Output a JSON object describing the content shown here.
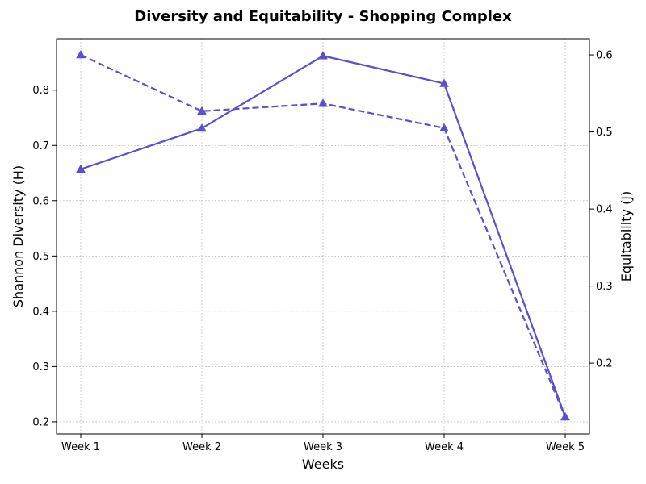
{
  "chart_data": {
    "type": "line",
    "title": "Diversity and Equitability - Shopping Complex",
    "xlabel": "Weeks",
    "ylabel": "Shannon Diversity (H)",
    "ylabel_right": "Equitability (J)",
    "categories": [
      "Week 1",
      "Week 2",
      "Week 3",
      "Week 4",
      "Week 5"
    ],
    "ylim": [
      0.178,
      0.893
    ],
    "ylim_right": [
      0.108,
      0.621
    ],
    "yticks": [
      0.2,
      0.3,
      0.4,
      0.5,
      0.6,
      0.7,
      0.8
    ],
    "yticks_right": [
      0.2,
      0.3,
      0.4,
      0.5,
      0.6
    ],
    "series": [
      {
        "axis": "left",
        "style": "solid",
        "marker": "triangle",
        "color": "#5a4fcf",
        "values": [
          0.657,
          0.731,
          0.862,
          0.812,
          0.209
        ]
      },
      {
        "axis": "right",
        "style": "dashed",
        "marker": "triangle",
        "color": "#5a4fcf",
        "values": [
          0.6,
          0.527,
          0.537,
          0.505,
          0.13
        ]
      }
    ],
    "grid": true
  }
}
